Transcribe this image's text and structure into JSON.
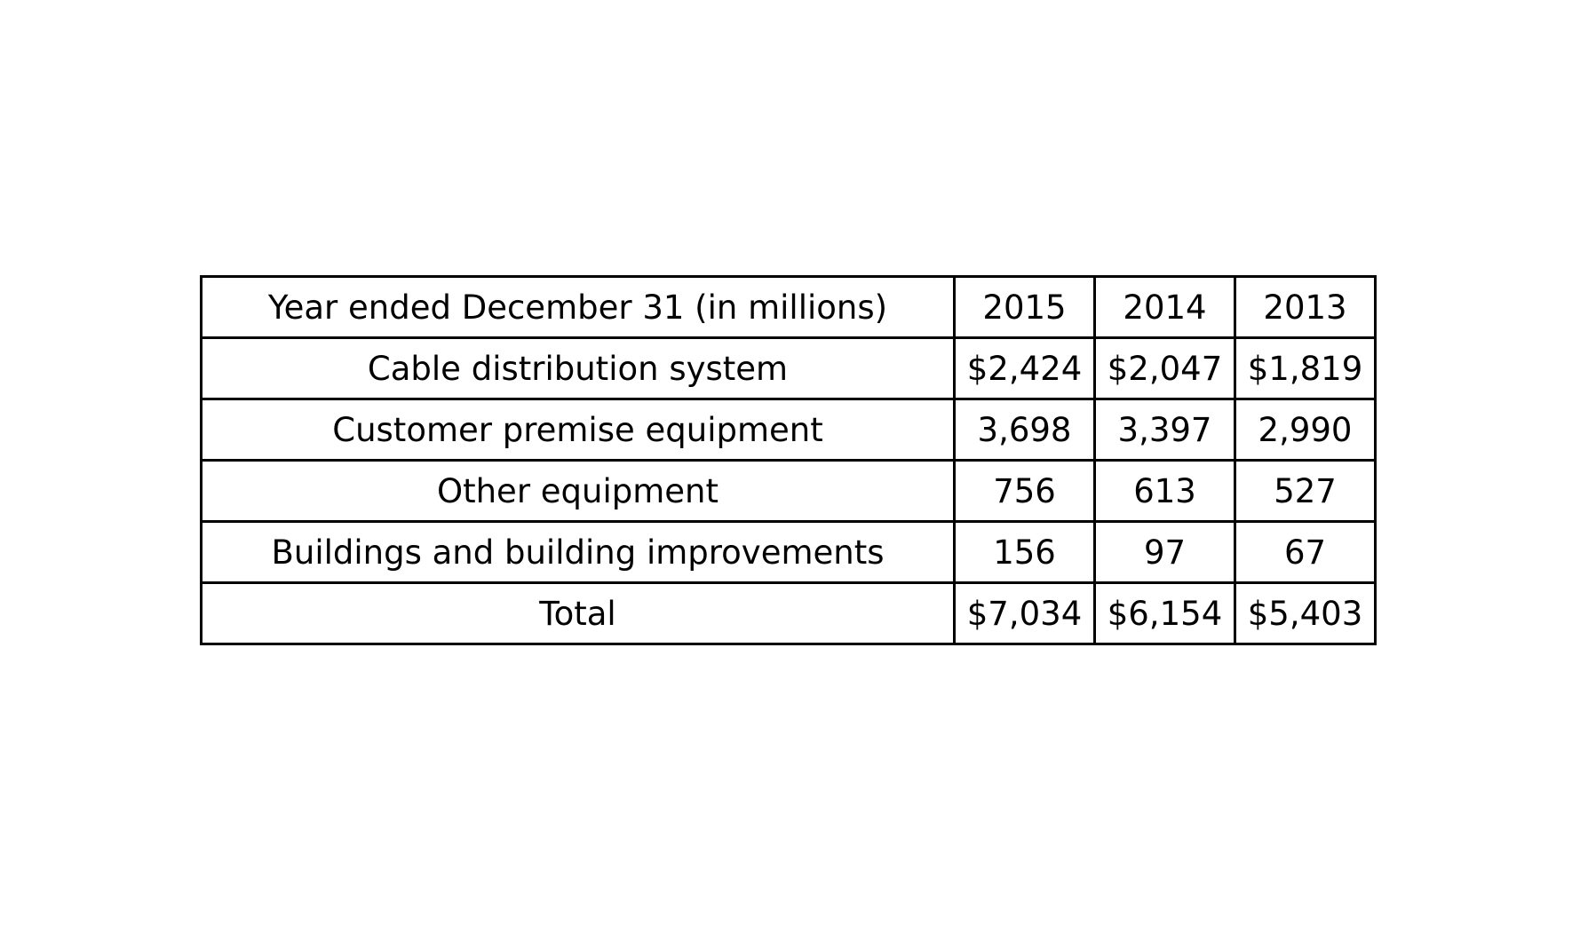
{
  "table": {
    "header": {
      "label": "Year ended December 31 (in millions)",
      "years": [
        "2015",
        "2014",
        "2013"
      ]
    },
    "rows": [
      {
        "label": "Cable distribution system",
        "values": [
          "$2,424",
          "$2,047",
          "$1,819"
        ]
      },
      {
        "label": "Customer premise equipment",
        "values": [
          "3,698",
          "3,397",
          "2,990"
        ]
      },
      {
        "label": "Other equipment",
        "values": [
          "756",
          "613",
          "527"
        ]
      },
      {
        "label": "Buildings and building improvements",
        "values": [
          "156",
          "97",
          "67"
        ]
      },
      {
        "label": "Total",
        "values": [
          "$7,034",
          "$6,154",
          "$5,403"
        ]
      }
    ]
  }
}
